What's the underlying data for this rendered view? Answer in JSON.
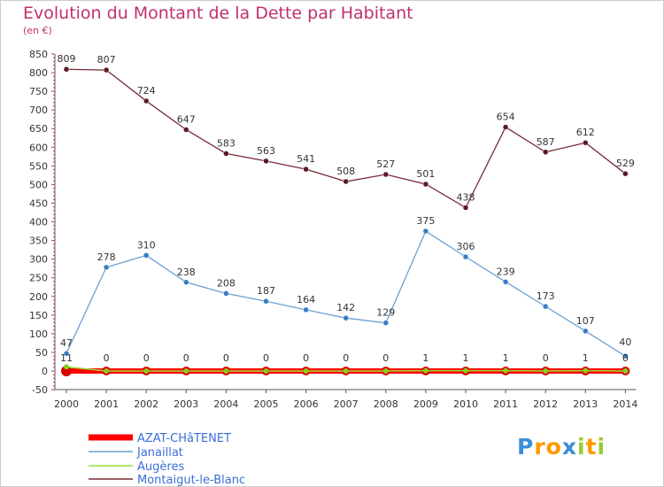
{
  "chart_data": {
    "type": "line",
    "title": "Evolution du Montant de la Dette par Habitant",
    "ylabel": "(en €)",
    "ylim": [
      -50,
      850
    ],
    "yticks": [
      -50,
      0,
      50,
      100,
      150,
      200,
      250,
      300,
      350,
      400,
      450,
      500,
      550,
      600,
      650,
      700,
      750,
      800,
      850
    ],
    "x": [
      "2000",
      "2001",
      "2002",
      "2003",
      "2004",
      "2005",
      "2006",
      "2007",
      "2008",
      "2009",
      "2010",
      "2011",
      "2012",
      "2013",
      "2014"
    ],
    "grid": false,
    "legend_position": "bottom-left",
    "series": [
      {
        "name": "AZAT-CHâTENET",
        "color": "#ff0000",
        "values": [
          0,
          0,
          0,
          0,
          0,
          0,
          0,
          0,
          0,
          0,
          0,
          0,
          0,
          0,
          0
        ],
        "labels": [
          "",
          "",
          "",
          "",
          "",
          "",
          "",
          "",
          "",
          "",
          "",
          "",
          "",
          "",
          ""
        ]
      },
      {
        "name": "Janaillat",
        "color": "#6b9fd4",
        "values": [
          47,
          278,
          310,
          238,
          208,
          187,
          164,
          142,
          129,
          375,
          306,
          239,
          173,
          107,
          40
        ],
        "labels": [
          "47",
          "278",
          "310",
          "238",
          "208",
          "187",
          "164",
          "142",
          "129",
          "375",
          "306",
          "239",
          "173",
          "107",
          "40"
        ]
      },
      {
        "name": "Augères",
        "color": "#99dd33",
        "values": [
          11,
          0,
          0,
          0,
          0,
          0,
          0,
          0,
          0,
          1,
          1,
          1,
          0,
          1,
          0
        ],
        "labels": [
          "11",
          "0",
          "0",
          "0",
          "0",
          "0",
          "0",
          "0",
          "0",
          "1",
          "1",
          "1",
          "0",
          "1",
          "0"
        ]
      },
      {
        "name": "Montaigut-le-Blanc",
        "color": "#7a2a35",
        "values": [
          809,
          807,
          724,
          647,
          583,
          563,
          541,
          508,
          527,
          501,
          438,
          654,
          587,
          612,
          529
        ],
        "labels": [
          "809",
          "807",
          "724",
          "647",
          "583",
          "563",
          "541",
          "508",
          "527",
          "501",
          "438",
          "654",
          "587",
          "612",
          "529"
        ]
      }
    ]
  },
  "brand": {
    "letters": [
      "P",
      "r",
      "o",
      "x",
      "i",
      "t",
      "i"
    ],
    "colors": [
      "#3a8fd8",
      "#ff9900",
      "#ff9900",
      "#3a8fd8",
      "#99cc33",
      "#ff9900",
      "#99cc33"
    ]
  }
}
